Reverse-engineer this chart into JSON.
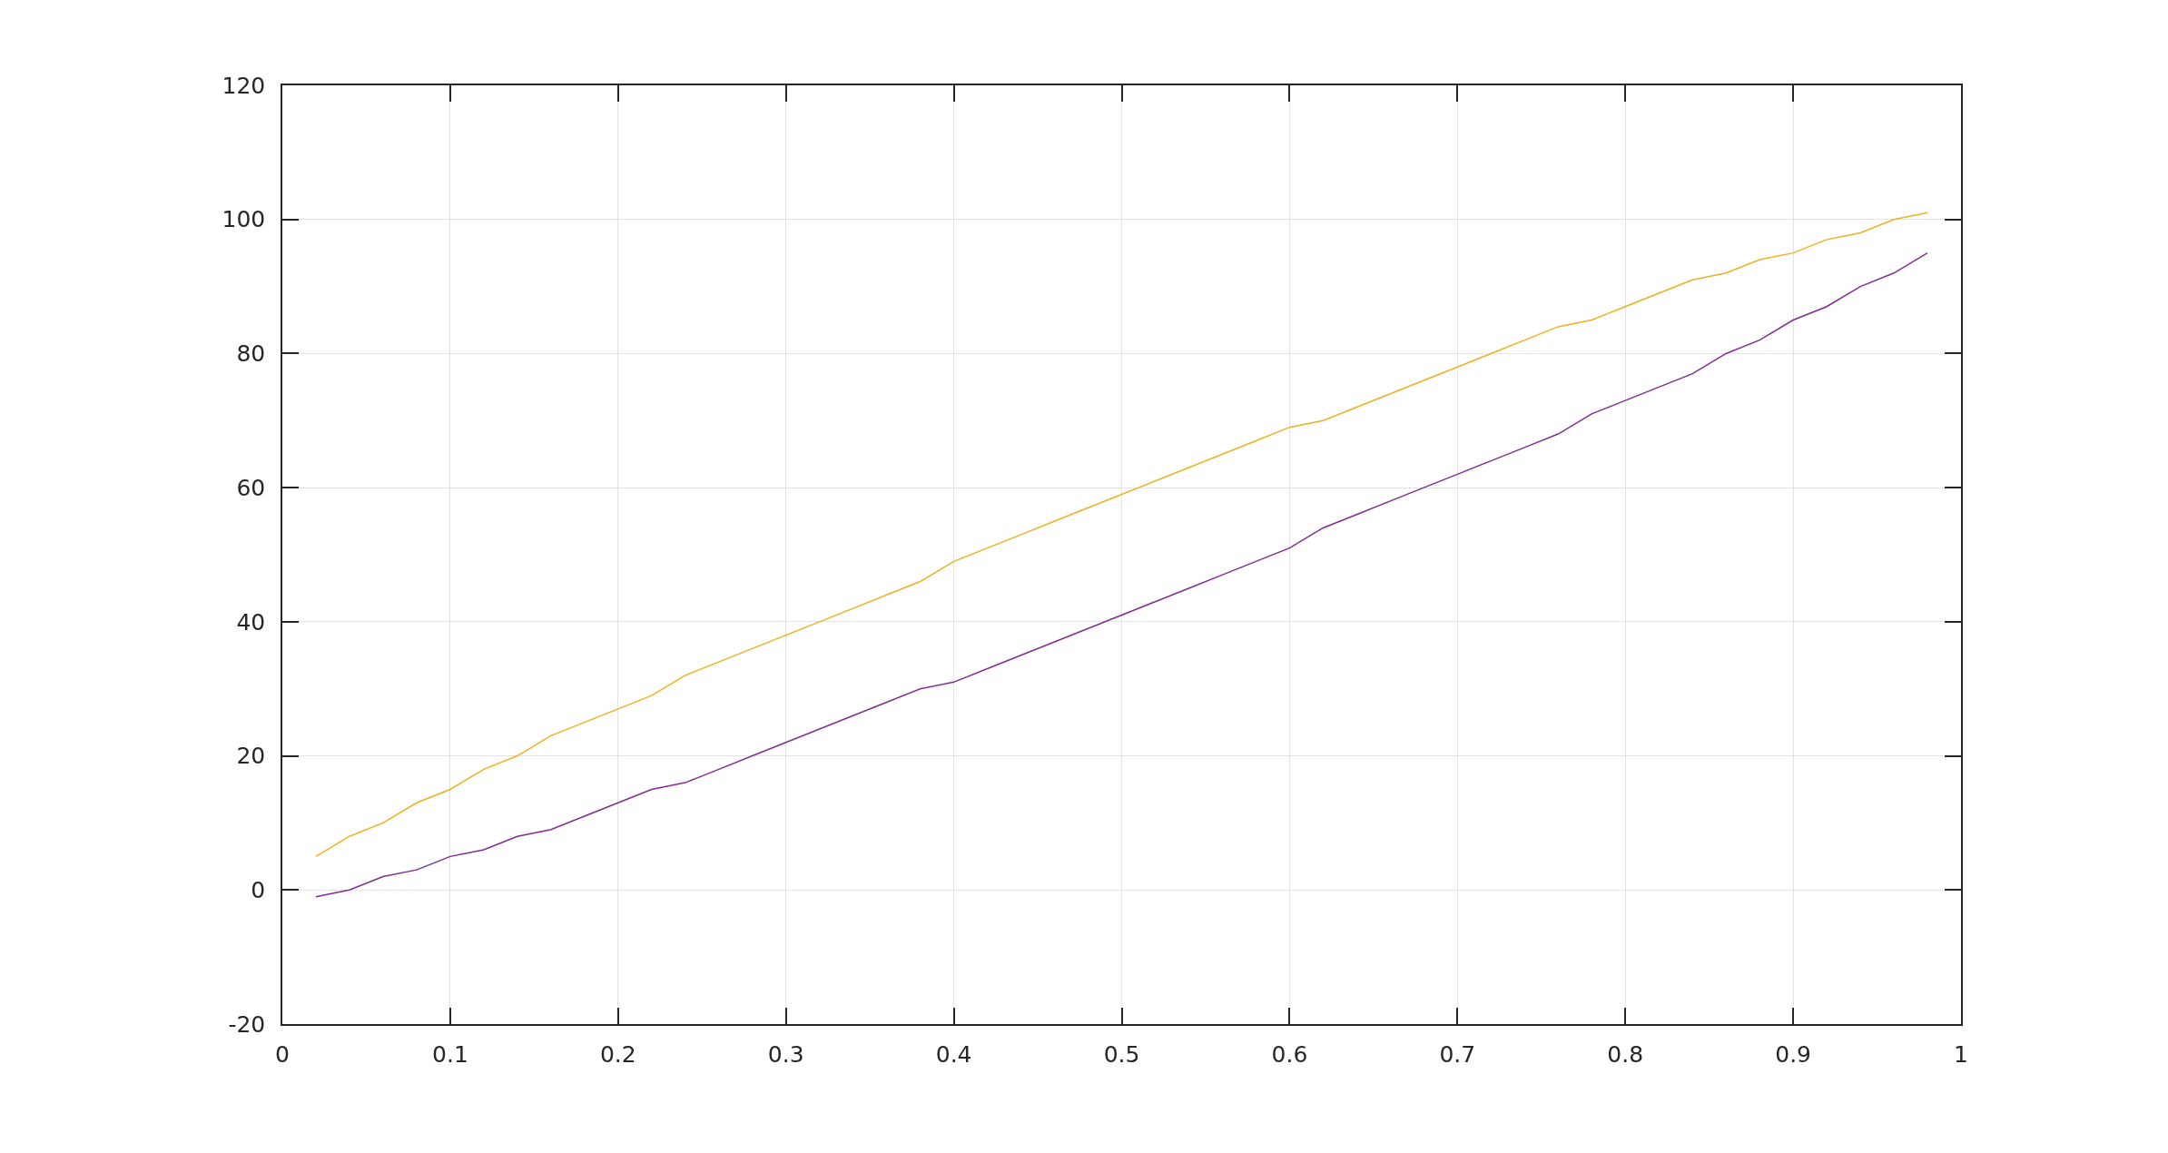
{
  "chart_data": {
    "type": "line",
    "x": [
      0.02,
      0.04,
      0.06,
      0.08,
      0.1,
      0.12,
      0.14,
      0.16,
      0.18,
      0.2,
      0.22,
      0.24,
      0.26,
      0.28,
      0.3,
      0.32,
      0.34,
      0.36,
      0.38,
      0.4,
      0.42,
      0.44,
      0.46,
      0.48,
      0.5,
      0.52,
      0.54,
      0.56,
      0.58,
      0.6,
      0.62,
      0.64,
      0.66,
      0.68,
      0.7,
      0.72,
      0.74,
      0.76,
      0.78,
      0.8,
      0.82,
      0.84,
      0.86,
      0.88,
      0.9,
      0.92,
      0.94,
      0.96,
      0.98
    ],
    "series": [
      {
        "color": "#edb120",
        "values": [
          5,
          8,
          10,
          13,
          15,
          18,
          20,
          23,
          25,
          27,
          29,
          32,
          34,
          36,
          38,
          40,
          42,
          44,
          46,
          49,
          51,
          53,
          55,
          57,
          59,
          61,
          63,
          65,
          67,
          69,
          70,
          72,
          74,
          76,
          78,
          80,
          82,
          84,
          85,
          87,
          89,
          91,
          92,
          94,
          95,
          97,
          98,
          100,
          101
        ]
      },
      {
        "color": "#7e2f8e",
        "values": [
          -1,
          0,
          2,
          3,
          5,
          6,
          8,
          9,
          11,
          13,
          15,
          16,
          18,
          20,
          22,
          24,
          26,
          28,
          30,
          31,
          33,
          35,
          37,
          39,
          41,
          43,
          45,
          47,
          49,
          51,
          54,
          56,
          58,
          60,
          62,
          64,
          66,
          68,
          71,
          73,
          75,
          77,
          80,
          82,
          85,
          87,
          90,
          92,
          95
        ]
      }
    ],
    "xlim": [
      0,
      1
    ],
    "ylim": [
      -20,
      120
    ],
    "xticks": [
      0,
      0.1,
      0.2,
      0.3,
      0.4,
      0.5,
      0.6,
      0.7,
      0.8,
      0.9,
      1
    ],
    "yticks": [
      -20,
      0,
      20,
      40,
      60,
      80,
      100,
      120
    ],
    "grid": true,
    "line_style": "solid"
  }
}
